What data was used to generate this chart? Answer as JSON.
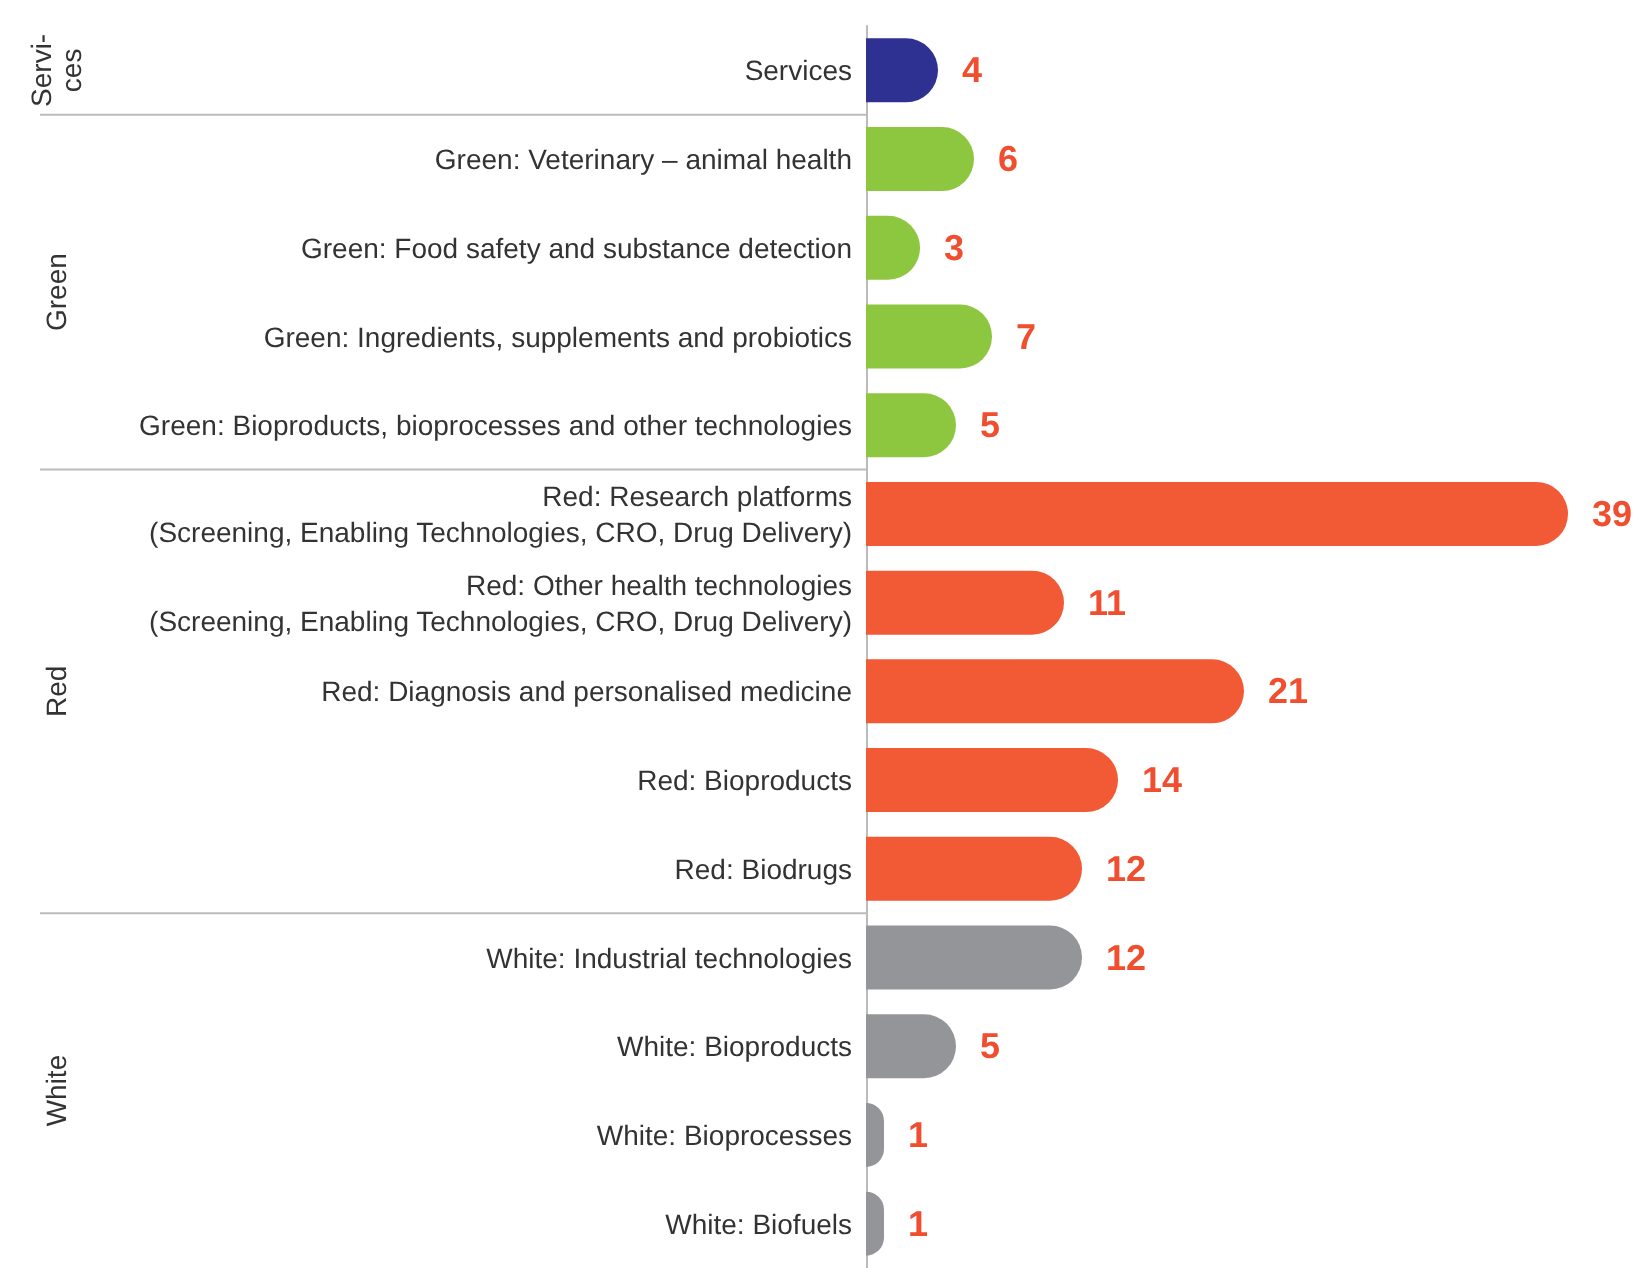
{
  "chart_data": {
    "type": "bar",
    "orientation": "horizontal",
    "stacked": true,
    "data_labels": true,
    "annotations": [
      "Servi-ces",
      "Green",
      "Red",
      "White"
    ],
    "categories": [
      "Services",
      "Green: Veterinary – animal health",
      "Green: Food safety and substance detection",
      "Green: Ingredients, supplements and probiotics",
      "Green: Bioproducts, bioprocesses and other technologies",
      "Red: Research platforms\n(Screening, Enabling Technologies, CRO, Drug Delivery)",
      "Red: Other health technologies\n(Screening, Enabling Technologies, CRO, Drug Delivery)",
      "Red: Diagnosis and personalised medicine",
      "Red: Bioproducts",
      "Red: Biodrugs",
      "White: Industrial technologies",
      "White: Bioproducts",
      "White: Bioprocesses",
      "White: Biofuels"
    ],
    "series": [
      {
        "color": "#2e3192",
        "values": [
          4,
          null,
          null,
          null,
          null,
          null,
          null,
          null,
          null,
          null,
          null,
          null,
          null,
          null
        ]
      },
      {
        "color": "#8dc63f",
        "values": [
          null,
          6,
          3,
          7,
          5,
          null,
          null,
          null,
          null,
          null,
          null,
          null,
          null,
          null
        ]
      },
      {
        "color": "#f15a35",
        "values": [
          null,
          null,
          null,
          null,
          null,
          39,
          11,
          21,
          14,
          12,
          null,
          null,
          null,
          null
        ]
      },
      {
        "color": "#939598",
        "values": [
          null,
          null,
          null,
          null,
          null,
          null,
          null,
          null,
          null,
          null,
          12,
          5,
          1,
          1
        ]
      }
    ]
  }
}
